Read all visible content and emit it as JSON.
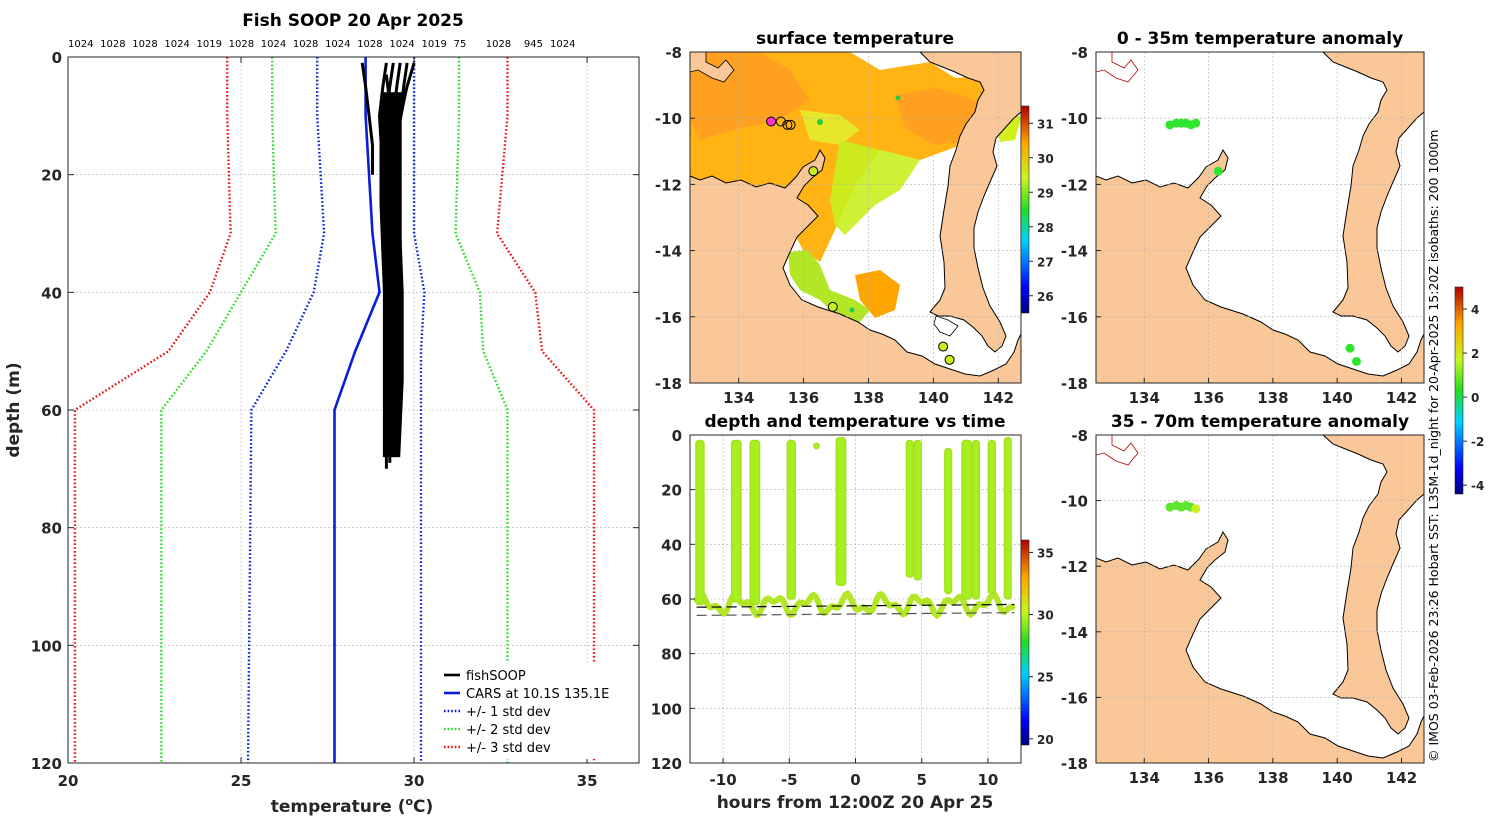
{
  "chart_data": [
    {
      "id": "profile",
      "type": "line",
      "title": "Fish SOOP 20 Apr 2025",
      "xlabel": "temperature (°C)",
      "xlabel_main": "temperature (",
      "xlabel_sup": "o",
      "xlabel_end": "C)",
      "ylabel": "depth (m)",
      "xlim": [
        20,
        36.5
      ],
      "ylim": [
        120,
        0
      ],
      "xticks": [
        20,
        25,
        30,
        35
      ],
      "yticks": [
        0,
        20,
        40,
        60,
        80,
        100,
        120
      ],
      "pressure_labels": [
        "1024",
        "1028",
        "1028",
        "1024",
        "1019",
        "1028",
        "1024",
        "1028",
        "1024",
        "1028",
        "1024",
        "1019",
        "75",
        "1028",
        "945",
        "1024"
      ],
      "legend_position": "bottom-right",
      "legend": [
        {
          "label": "fishSOOP",
          "color": "#000000",
          "style": "solid"
        },
        {
          "label": "CARS at 10.1S 135.1E",
          "color": "#0a1ed8",
          "style": "solid"
        },
        {
          "label": "+/- 1 std dev",
          "color": "#0a1ed8",
          "style": "dotted"
        },
        {
          "label": "+/- 2 std dev",
          "color": "#22dd22",
          "style": "dotted"
        },
        {
          "label": "+/- 3 std dev",
          "color": "#ee1111",
          "style": "dotted"
        }
      ],
      "series": [
        {
          "name": "CARS mean",
          "color": "#0a1ed8",
          "style": "solid",
          "points": [
            [
              28.6,
              0
            ],
            [
              28.6,
              10
            ],
            [
              28.8,
              30
            ],
            [
              29.0,
              40
            ],
            [
              28.3,
              50
            ],
            [
              27.7,
              60
            ],
            [
              27.7,
              120
            ]
          ]
        },
        {
          "name": "+1 std",
          "color": "#0a1ed8",
          "style": "dotted",
          "points": [
            [
              30.0,
              0
            ],
            [
              30.0,
              10
            ],
            [
              30.0,
              30
            ],
            [
              30.3,
              40
            ],
            [
              30.2,
              50
            ],
            [
              30.2,
              60
            ],
            [
              30.2,
              120
            ]
          ]
        },
        {
          "name": "-1 std",
          "color": "#0a1ed8",
          "style": "dotted",
          "points": [
            [
              27.2,
              0
            ],
            [
              27.2,
              10
            ],
            [
              27.4,
              30
            ],
            [
              27.1,
              40
            ],
            [
              26.3,
              50
            ],
            [
              25.3,
              60
            ],
            [
              25.2,
              120
            ]
          ]
        },
        {
          "name": "+2 std",
          "color": "#22dd22",
          "style": "dotted",
          "points": [
            [
              31.3,
              0
            ],
            [
              31.3,
              10
            ],
            [
              31.2,
              30
            ],
            [
              31.9,
              40
            ],
            [
              32.0,
              50
            ],
            [
              32.7,
              60
            ],
            [
              32.7,
              120
            ]
          ]
        },
        {
          "name": "-2 std",
          "color": "#22dd22",
          "style": "dotted",
          "points": [
            [
              25.9,
              0
            ],
            [
              25.9,
              10
            ],
            [
              26.0,
              30
            ],
            [
              25.0,
              40
            ],
            [
              24.0,
              50
            ],
            [
              22.7,
              60
            ],
            [
              22.7,
              120
            ]
          ]
        },
        {
          "name": "+3 std",
          "color": "#ee1111",
          "style": "dotted",
          "points": [
            [
              32.7,
              0
            ],
            [
              32.7,
              10
            ],
            [
              32.4,
              30
            ],
            [
              33.5,
              40
            ],
            [
              33.7,
              50
            ],
            [
              35.2,
              60
            ],
            [
              35.2,
              120
            ]
          ]
        },
        {
          "name": "-3 std",
          "color": "#ee1111",
          "style": "dotted",
          "points": [
            [
              24.6,
              0
            ],
            [
              24.6,
              10
            ],
            [
              24.7,
              30
            ],
            [
              24.1,
              40
            ],
            [
              22.9,
              50
            ],
            [
              20.2,
              60
            ],
            [
              20.2,
              120
            ]
          ]
        },
        {
          "name": "fishSOOP casts",
          "color": "#000000",
          "style": "solid",
          "casts": [
            [
              [
                28.5,
                1
              ],
              [
                28.6,
                5
              ],
              [
                28.7,
                10
              ],
              [
                28.8,
                15
              ],
              [
                28.8,
                20
              ]
            ],
            [
              [
                29.2,
                1
              ],
              [
                29.1,
                5
              ],
              [
                29.0,
                10
              ],
              [
                29.1,
                20
              ],
              [
                29.2,
                30
              ],
              [
                29.3,
                40
              ],
              [
                29.3,
                50
              ],
              [
                29.2,
                60
              ],
              [
                29.2,
                70
              ]
            ],
            [
              [
                29.4,
                1
              ],
              [
                29.3,
                5
              ],
              [
                29.2,
                10
              ],
              [
                29.3,
                20
              ],
              [
                29.4,
                30
              ],
              [
                29.4,
                40
              ],
              [
                29.4,
                50
              ],
              [
                29.3,
                60
              ],
              [
                29.3,
                69
              ]
            ],
            [
              [
                29.6,
                1
              ],
              [
                29.5,
                5
              ],
              [
                29.4,
                10
              ],
              [
                29.4,
                20
              ],
              [
                29.5,
                30
              ],
              [
                29.5,
                40
              ],
              [
                29.5,
                50
              ],
              [
                29.4,
                60
              ],
              [
                29.4,
                68
              ]
            ],
            [
              [
                29.8,
                1
              ],
              [
                29.7,
                5
              ],
              [
                29.6,
                10
              ],
              [
                29.6,
                20
              ],
              [
                29.6,
                30
              ],
              [
                29.6,
                40
              ],
              [
                29.6,
                50
              ],
              [
                29.6,
                60
              ],
              [
                29.5,
                67
              ]
            ],
            [
              [
                30.0,
                1
              ],
              [
                29.8,
                5
              ],
              [
                29.6,
                10
              ],
              [
                29.5,
                20
              ],
              [
                29.5,
                30
              ],
              [
                29.5,
                40
              ],
              [
                29.4,
                50
              ],
              [
                29.4,
                60
              ],
              [
                29.3,
                66
              ]
            ],
            [
              [
                29.2,
                3
              ],
              [
                29.3,
                8
              ],
              [
                29.4,
                15
              ],
              [
                29.4,
                25
              ],
              [
                29.4,
                35
              ],
              [
                29.4,
                45
              ],
              [
                29.4,
                55
              ],
              [
                29.4,
                64
              ]
            ]
          ]
        }
      ]
    },
    {
      "id": "surface-map",
      "type": "map",
      "title": "surface temperature",
      "xlim": [
        132.5,
        142.7
      ],
      "ylim": [
        -18,
        -8
      ],
      "xticks": [
        134,
        136,
        138,
        140,
        142
      ],
      "yticks": [
        -8,
        -10,
        -12,
        -14,
        -16,
        -18
      ],
      "colorbar_range": [
        25.5,
        31.5
      ],
      "colorbar_ticks": [
        26,
        27,
        28,
        29,
        30,
        31
      ],
      "cast_markers": [
        [
          135.0,
          -10.1
        ],
        [
          135.3,
          -10.1
        ],
        [
          135.5,
          -10.2
        ],
        [
          135.6,
          -10.2
        ],
        [
          136.3,
          -11.6
        ],
        [
          136.9,
          -15.7
        ],
        [
          140.3,
          -16.9
        ],
        [
          140.5,
          -17.3
        ]
      ]
    },
    {
      "id": "anomaly-0-35",
      "type": "map",
      "title": "0 - 35m temperature anomaly",
      "xlim": [
        132.5,
        142.7
      ],
      "ylim": [
        -18,
        -8
      ],
      "xticks": [
        134,
        136,
        138,
        140,
        142
      ],
      "yticks": [
        -8,
        -10,
        -12,
        -14,
        -16,
        -18
      ],
      "points": [
        [
          134.8,
          -10.2
        ],
        [
          135.0,
          -10.15
        ],
        [
          135.15,
          -10.15
        ],
        [
          135.3,
          -10.15
        ],
        [
          135.45,
          -10.2
        ],
        [
          135.6,
          -10.15
        ],
        [
          136.3,
          -11.6
        ],
        [
          140.4,
          -16.95
        ],
        [
          140.6,
          -17.35
        ]
      ]
    },
    {
      "id": "anomaly-35-70",
      "type": "map",
      "title": "35 - 70m temperature anomaly",
      "xlim": [
        132.5,
        142.7
      ],
      "ylim": [
        -18,
        -8
      ],
      "xticks": [
        134,
        136,
        138,
        140,
        142
      ],
      "yticks": [
        -8,
        -10,
        -12,
        -14,
        -16,
        -18
      ],
      "colorbar_range": [
        -4.4,
        5.0
      ],
      "colorbar_ticks": [
        -4,
        -2,
        0,
        2,
        4
      ],
      "points": [
        [
          134.8,
          -10.2
        ],
        [
          135.0,
          -10.15
        ],
        [
          135.15,
          -10.2
        ],
        [
          135.3,
          -10.15
        ],
        [
          135.45,
          -10.2
        ],
        [
          135.6,
          -10.25
        ]
      ]
    },
    {
      "id": "depth-time",
      "type": "scatter",
      "title": "depth and temperature vs time",
      "xlabel": "hours from 12:00Z 20 Apr 25",
      "xlim": [
        -12.5,
        12.5
      ],
      "ylim": [
        120,
        0
      ],
      "xticks": [
        -10,
        -5,
        0,
        5,
        10
      ],
      "yticks": [
        0,
        20,
        40,
        60,
        80,
        100,
        120
      ],
      "colorbar_range": [
        19.5,
        36
      ],
      "colorbar_ticks": [
        20,
        25,
        30,
        35
      ],
      "dives": [
        {
          "start": -11.9,
          "end": -11.6,
          "depth": 62,
          "surface": 2
        },
        {
          "start": -9.2,
          "end": -8.8,
          "depth": 61,
          "surface": 2
        },
        {
          "start": -7.8,
          "end": -7.4,
          "depth": 62,
          "surface": 2
        },
        {
          "start": -5.0,
          "end": -4.7,
          "depth": 60,
          "surface": 2
        },
        {
          "start": -3.0,
          "end": -2.9,
          "depth": 5,
          "surface": 3
        },
        {
          "start": -1.3,
          "end": -0.9,
          "depth": 55,
          "surface": 1
        },
        {
          "start": 4.0,
          "end": 4.2,
          "depth": 52,
          "surface": 2
        },
        {
          "start": 4.6,
          "end": 4.8,
          "depth": 53,
          "surface": 2
        },
        {
          "start": 6.9,
          "end": 7.1,
          "depth": 58,
          "surface": 5
        },
        {
          "start": 8.2,
          "end": 8.6,
          "depth": 60,
          "surface": 2
        },
        {
          "start": 9.0,
          "end": 9.2,
          "depth": 60,
          "surface": 2
        },
        {
          "start": 10.2,
          "end": 10.4,
          "depth": 58,
          "surface": 2
        },
        {
          "start": 11.4,
          "end": 11.6,
          "depth": 60,
          "surface": 1
        }
      ],
      "seafloor_a": [
        [
          -12,
          63
        ],
        [
          12,
          62
        ]
      ],
      "seafloor_b": [
        [
          -12,
          66
        ],
        [
          12,
          65
        ]
      ]
    }
  ],
  "credit": "© IMOS 03-Feb-2026 23:26 Hobart SST: L3SM-1d_night for 20-Apr-2025 15:20Z isobaths: 200  1000m",
  "colors": {
    "land": "#fac898",
    "blue": "#0a1ed8",
    "green": "#22dd22",
    "red": "#ee1111",
    "lime": "#b4f01e"
  }
}
